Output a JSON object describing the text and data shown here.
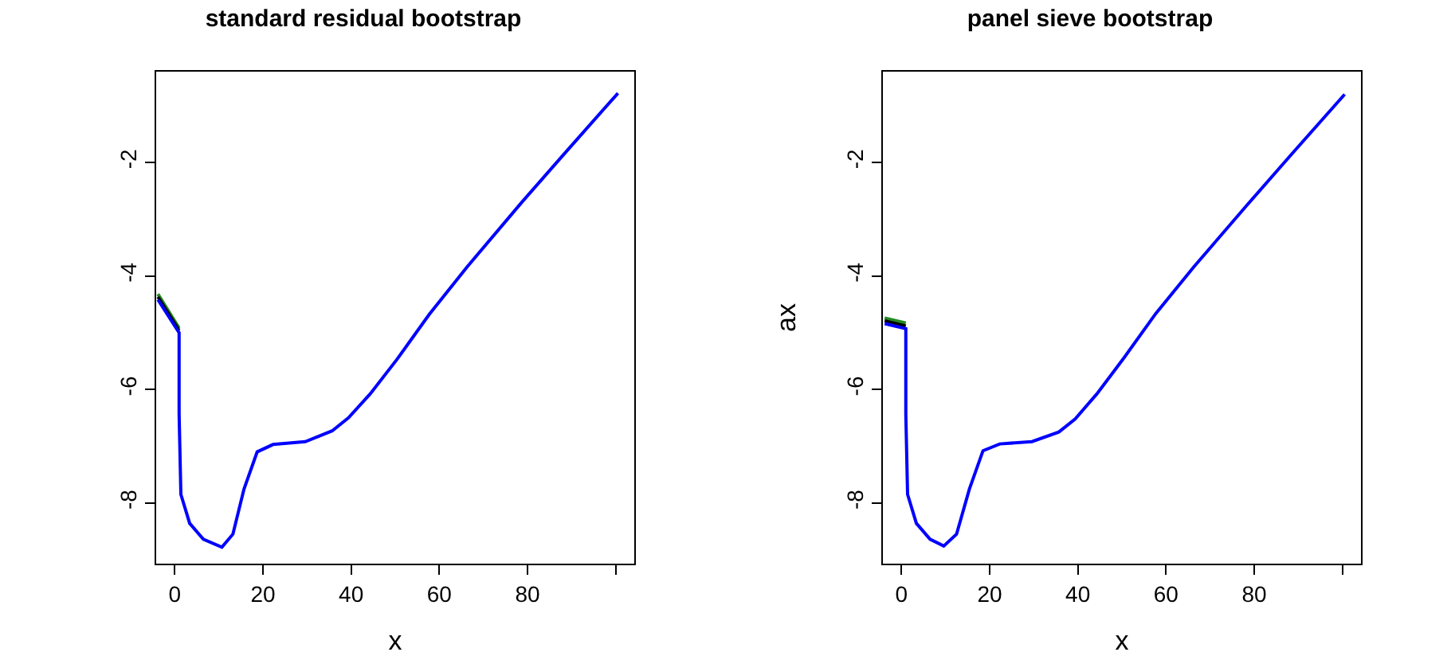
{
  "chart_data": [
    {
      "type": "line",
      "title": "standard residual bootstrap",
      "xlabel": "x",
      "x": [
        -3.8,
        1.0,
        1.0,
        1.4,
        3.4,
        6.5,
        10.7,
        13.2,
        15.7,
        18.7,
        22.3,
        29.6,
        35.7,
        39.4,
        44.3,
        50.4,
        57.7,
        66.3,
        78.5,
        88.3,
        100.5
      ],
      "series": [
        {
          "color": "#228b22",
          "values": [
            -4.32,
            -4.92,
            null,
            null,
            null,
            null,
            null,
            null,
            null,
            null,
            null,
            null,
            null,
            null,
            null,
            null,
            null,
            null,
            null,
            null,
            null
          ]
        },
        {
          "color": "#000000",
          "values": [
            -4.37,
            -4.96,
            null,
            null,
            null,
            null,
            null,
            null,
            null,
            null,
            null,
            null,
            null,
            null,
            null,
            null,
            null,
            null,
            null,
            null,
            null
          ]
        },
        {
          "color": "#0000ff",
          "values": [
            -4.42,
            -5.0,
            -6.43,
            -7.85,
            -8.36,
            -8.64,
            -8.78,
            -8.55,
            -7.76,
            -7.1,
            -6.97,
            -6.92,
            -6.73,
            -6.5,
            -6.08,
            -5.47,
            -4.68,
            -3.84,
            -2.72,
            -1.85,
            -0.78
          ]
        }
      ],
      "xlim": [
        -4.2,
        104.2
      ],
      "xticks": [
        0,
        20,
        40,
        60,
        80,
        {
          "value": 100,
          "label": null
        }
      ],
      "ylim": [
        -9.07,
        -0.4
      ],
      "yticks": [
        -8,
        -6,
        -4,
        -2
      ],
      "grid": false,
      "marker": "none",
      "line_style": "solid"
    },
    {
      "type": "line",
      "title": "panel sieve bootstrap",
      "xlabel": "x",
      "ylabel": "ax",
      "x": [
        -3.8,
        1.0,
        1.0,
        1.4,
        3.4,
        6.5,
        9.6,
        12.5,
        15.4,
        18.5,
        22.3,
        29.6,
        35.7,
        39.4,
        44.3,
        50.4,
        57.7,
        66.3,
        78.5,
        88.3,
        100.5
      ],
      "series": [
        {
          "color": "#228b22",
          "values": [
            -4.74,
            -4.83,
            null,
            null,
            null,
            null,
            null,
            null,
            null,
            null,
            null,
            null,
            null,
            null,
            null,
            null,
            null,
            null,
            null,
            null,
            null
          ]
        },
        {
          "color": "#000000",
          "values": [
            -4.79,
            -4.88,
            null,
            null,
            null,
            null,
            null,
            null,
            null,
            null,
            null,
            null,
            null,
            null,
            null,
            null,
            null,
            null,
            null,
            null,
            null
          ]
        },
        {
          "color": "#0000ff",
          "values": [
            -4.84,
            -4.93,
            -6.43,
            -7.85,
            -8.36,
            -8.64,
            -8.76,
            -8.55,
            -7.76,
            -7.08,
            -6.96,
            -6.92,
            -6.75,
            -6.52,
            -6.08,
            -5.45,
            -4.66,
            -3.84,
            -2.74,
            -1.87,
            -0.8
          ]
        }
      ],
      "xlim": [
        -4.2,
        104.2
      ],
      "xticks": [
        0,
        20,
        40,
        60,
        80,
        {
          "value": 100,
          "label": null
        }
      ],
      "ylim": [
        -9.07,
        -0.4
      ],
      "yticks": [
        -8,
        -6,
        -4,
        -2
      ],
      "grid": false,
      "marker": "none",
      "line_style": "solid"
    }
  ]
}
